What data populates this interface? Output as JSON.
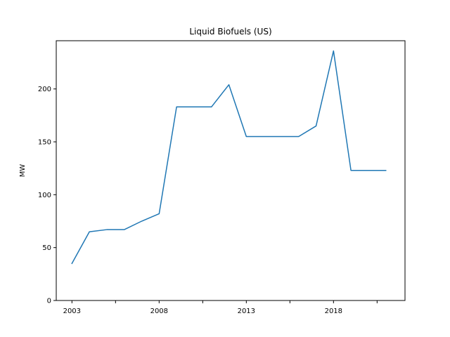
{
  "chart_data": {
    "type": "line",
    "title": "Liquid Biofuels (US)",
    "xlabel": "",
    "ylabel": "MW",
    "x": [
      2003,
      2004,
      2005,
      2006,
      2007,
      2008,
      2009,
      2010,
      2011,
      2012,
      2013,
      2014,
      2015,
      2016,
      2017,
      2018,
      2019,
      2020,
      2021
    ],
    "series": [
      {
        "values": [
          35,
          65,
          67,
          67,
          75,
          82,
          183,
          183,
          183,
          204,
          155,
          155,
          155,
          155,
          165,
          236,
          123,
          123,
          123
        ],
        "color": "#1f77b4"
      }
    ],
    "xlim": [
      2002.1,
      2022.1
    ],
    "ylim": [
      0,
      245.6
    ],
    "xticks": [
      2003,
      2005.5,
      2008,
      2010.5,
      2013,
      2015.5,
      2018,
      2020.5
    ],
    "xtick_labels": [
      "2003",
      "",
      "2008",
      "",
      "2013",
      "",
      "2018",
      ""
    ],
    "yticks": [
      0,
      50,
      100,
      150,
      200
    ],
    "ytick_labels": [
      "0",
      "50",
      "100",
      "150",
      "200"
    ],
    "grid": false,
    "legend": "none"
  }
}
